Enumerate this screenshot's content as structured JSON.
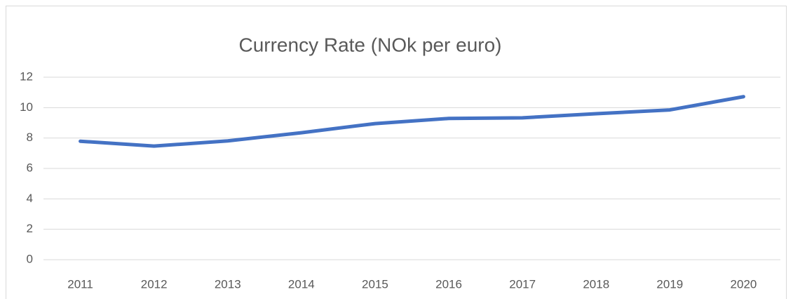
{
  "chart_data": {
    "type": "line",
    "title": "Currency Rate (NOk per euro)",
    "categories": [
      "2011",
      "2012",
      "2013",
      "2014",
      "2015",
      "2016",
      "2017",
      "2018",
      "2019",
      "2020"
    ],
    "series": [
      {
        "name": "Currency Rate",
        "color": "#4472c4",
        "values": [
          7.79,
          7.47,
          7.81,
          8.35,
          8.95,
          9.29,
          9.33,
          9.6,
          9.85,
          10.72
        ]
      }
    ],
    "ylim": [
      0,
      12
    ],
    "yticks": [
      0,
      2,
      4,
      6,
      8,
      10,
      12
    ],
    "grid": true
  }
}
